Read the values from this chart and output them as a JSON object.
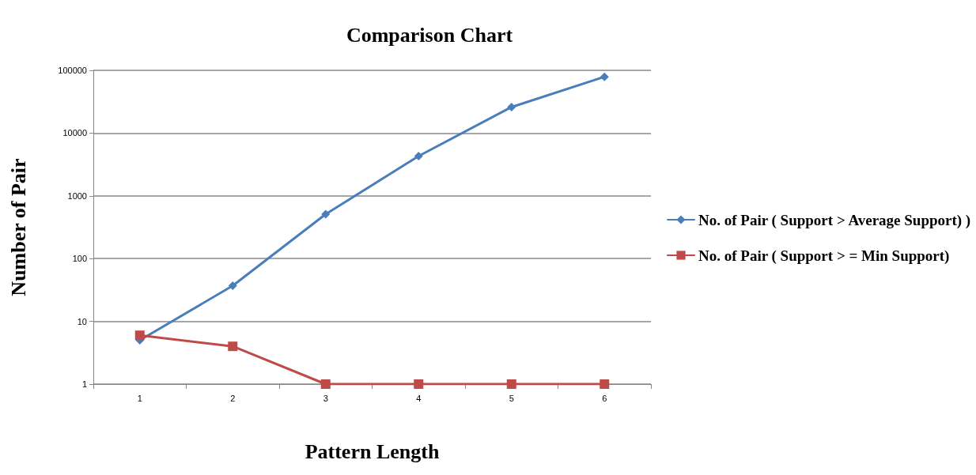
{
  "chart_data": {
    "type": "line",
    "title": "Comparison Chart",
    "xlabel": "Pattern Length",
    "ylabel": "Number of Pair",
    "categories": [
      "1",
      "2",
      "3",
      "4",
      "5",
      "6"
    ],
    "series": [
      {
        "name": "No. of Pair ( Support > Average Support) )",
        "color": "#4a7ebb",
        "marker": "diamond",
        "values": [
          5,
          37,
          510,
          4300,
          26000,
          79000
        ]
      },
      {
        "name": "No. of Pair ( Support > = Min Support)",
        "color": "#be4b48",
        "marker": "square",
        "values": [
          6,
          4,
          1,
          1,
          1,
          1
        ]
      }
    ],
    "log": "y",
    "ylim": [
      1,
      100000
    ],
    "yticks": [
      1,
      10,
      100,
      1000,
      10000,
      100000
    ],
    "grid": "y",
    "legend": "right"
  }
}
